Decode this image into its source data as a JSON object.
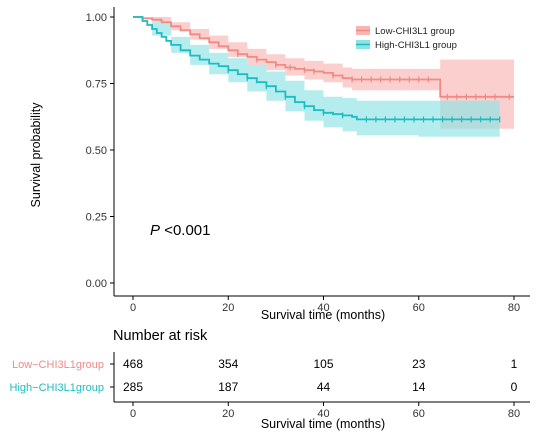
{
  "chart_data": {
    "type": "line",
    "subtype": "kaplan-meier",
    "xlabel": "Survival time (months)",
    "ylabel": "Survival probability",
    "xlim": [
      0,
      80
    ],
    "ylim": [
      0,
      1
    ],
    "xticks": [
      "0",
      "20",
      "40",
      "60",
      "80"
    ],
    "yticks": [
      "0.00",
      "0.25",
      "0.50",
      "0.75",
      "1.00"
    ],
    "grid": false,
    "legend_position": "top-right",
    "annotation": {
      "p_letter": "P",
      "p_rest": "<0.001"
    },
    "series": [
      {
        "name": "Low-CHI3L1 group",
        "color": "#f08a85",
        "band_color": "#f7b5b3",
        "points": [
          [
            0,
            1.0
          ],
          [
            2,
            0.995
          ],
          [
            4,
            0.99
          ],
          [
            6,
            0.98
          ],
          [
            8,
            0.965
          ],
          [
            10,
            0.95
          ],
          [
            12,
            0.935
          ],
          [
            14,
            0.92
          ],
          [
            16,
            0.905
          ],
          [
            18,
            0.89
          ],
          [
            20,
            0.875
          ],
          [
            22,
            0.86
          ],
          [
            24,
            0.85
          ],
          [
            26,
            0.84
          ],
          [
            28,
            0.83
          ],
          [
            30,
            0.82
          ],
          [
            32,
            0.81
          ],
          [
            34,
            0.805
          ],
          [
            36,
            0.8
          ],
          [
            38,
            0.795
          ],
          [
            40,
            0.79
          ],
          [
            42,
            0.78
          ],
          [
            44,
            0.77
          ],
          [
            46,
            0.765
          ],
          [
            50,
            0.765
          ],
          [
            55,
            0.765
          ],
          [
            60,
            0.765
          ],
          [
            64,
            0.765
          ],
          [
            64.5,
            0.7
          ],
          [
            70,
            0.7
          ],
          [
            75,
            0.7
          ],
          [
            80,
            0.7
          ]
        ],
        "lower": [
          [
            0,
            1.0
          ],
          [
            4,
            0.98
          ],
          [
            8,
            0.95
          ],
          [
            12,
            0.915
          ],
          [
            16,
            0.88
          ],
          [
            20,
            0.85
          ],
          [
            24,
            0.82
          ],
          [
            28,
            0.8
          ],
          [
            32,
            0.78
          ],
          [
            36,
            0.765
          ],
          [
            40,
            0.755
          ],
          [
            44,
            0.735
          ],
          [
            46,
            0.725
          ],
          [
            64,
            0.725
          ],
          [
            64.5,
            0.58
          ],
          [
            80,
            0.58
          ]
        ],
        "upper": [
          [
            0,
            1.0
          ],
          [
            4,
            1.0
          ],
          [
            8,
            0.98
          ],
          [
            12,
            0.955
          ],
          [
            16,
            0.93
          ],
          [
            20,
            0.905
          ],
          [
            24,
            0.88
          ],
          [
            28,
            0.86
          ],
          [
            32,
            0.845
          ],
          [
            36,
            0.835
          ],
          [
            40,
            0.825
          ],
          [
            44,
            0.81
          ],
          [
            46,
            0.805
          ],
          [
            64,
            0.805
          ],
          [
            64.5,
            0.84
          ],
          [
            80,
            0.84
          ]
        ],
        "censor_x": [
          22,
          26,
          30,
          33,
          36,
          38,
          42,
          46,
          48,
          50,
          52,
          54,
          56,
          58,
          60,
          62,
          66,
          68,
          70,
          72,
          74,
          76,
          79
        ],
        "at_risk": [
          468,
          354,
          105,
          23,
          1
        ]
      },
      {
        "name": "High-CHI3L1 group",
        "color": "#1bbdc1",
        "band_color": "#8ee3e5",
        "points": [
          [
            0,
            1.0
          ],
          [
            2,
            0.985
          ],
          [
            3,
            0.97
          ],
          [
            4,
            0.955
          ],
          [
            5,
            0.94
          ],
          [
            6,
            0.925
          ],
          [
            7,
            0.91
          ],
          [
            8,
            0.895
          ],
          [
            10,
            0.875
          ],
          [
            12,
            0.855
          ],
          [
            14,
            0.84
          ],
          [
            16,
            0.825
          ],
          [
            18,
            0.815
          ],
          [
            20,
            0.8
          ],
          [
            22,
            0.785
          ],
          [
            24,
            0.77
          ],
          [
            26,
            0.755
          ],
          [
            28,
            0.74
          ],
          [
            30,
            0.72
          ],
          [
            32,
            0.7
          ],
          [
            34,
            0.68
          ],
          [
            36,
            0.665
          ],
          [
            38,
            0.65
          ],
          [
            40,
            0.64
          ],
          [
            42,
            0.635
          ],
          [
            44,
            0.63
          ],
          [
            46,
            0.625
          ],
          [
            47,
            0.615
          ],
          [
            50,
            0.615
          ],
          [
            55,
            0.615
          ],
          [
            60,
            0.615
          ],
          [
            65,
            0.615
          ],
          [
            70,
            0.615
          ],
          [
            75,
            0.615
          ],
          [
            77,
            0.615
          ]
        ],
        "lower": [
          [
            0,
            1.0
          ],
          [
            4,
            0.93
          ],
          [
            8,
            0.865
          ],
          [
            12,
            0.82
          ],
          [
            16,
            0.785
          ],
          [
            20,
            0.755
          ],
          [
            24,
            0.72
          ],
          [
            28,
            0.685
          ],
          [
            32,
            0.645
          ],
          [
            36,
            0.61
          ],
          [
            40,
            0.585
          ],
          [
            44,
            0.57
          ],
          [
            47,
            0.555
          ],
          [
            60,
            0.55
          ],
          [
            77,
            0.545
          ]
        ],
        "upper": [
          [
            0,
            1.0
          ],
          [
            4,
            0.98
          ],
          [
            8,
            0.925
          ],
          [
            12,
            0.895
          ],
          [
            16,
            0.865
          ],
          [
            20,
            0.845
          ],
          [
            24,
            0.82
          ],
          [
            28,
            0.795
          ],
          [
            32,
            0.76
          ],
          [
            36,
            0.725
          ],
          [
            40,
            0.7
          ],
          [
            44,
            0.695
          ],
          [
            47,
            0.685
          ],
          [
            60,
            0.685
          ],
          [
            77,
            0.685
          ]
        ],
        "censor_x": [
          20,
          24,
          28,
          32,
          36,
          40,
          44,
          49,
          51,
          53,
          55,
          57,
          59,
          61,
          63,
          65,
          67,
          69,
          71,
          73,
          75,
          77
        ],
        "at_risk": [
          285,
          187,
          44,
          14,
          0
        ]
      }
    ],
    "risk_table": {
      "title": "Number at risk",
      "time_points": [
        0,
        20,
        40,
        60,
        80
      ],
      "rows": [
        "Low−CHI3L1group",
        "High−CHI3L1group"
      ]
    }
  }
}
